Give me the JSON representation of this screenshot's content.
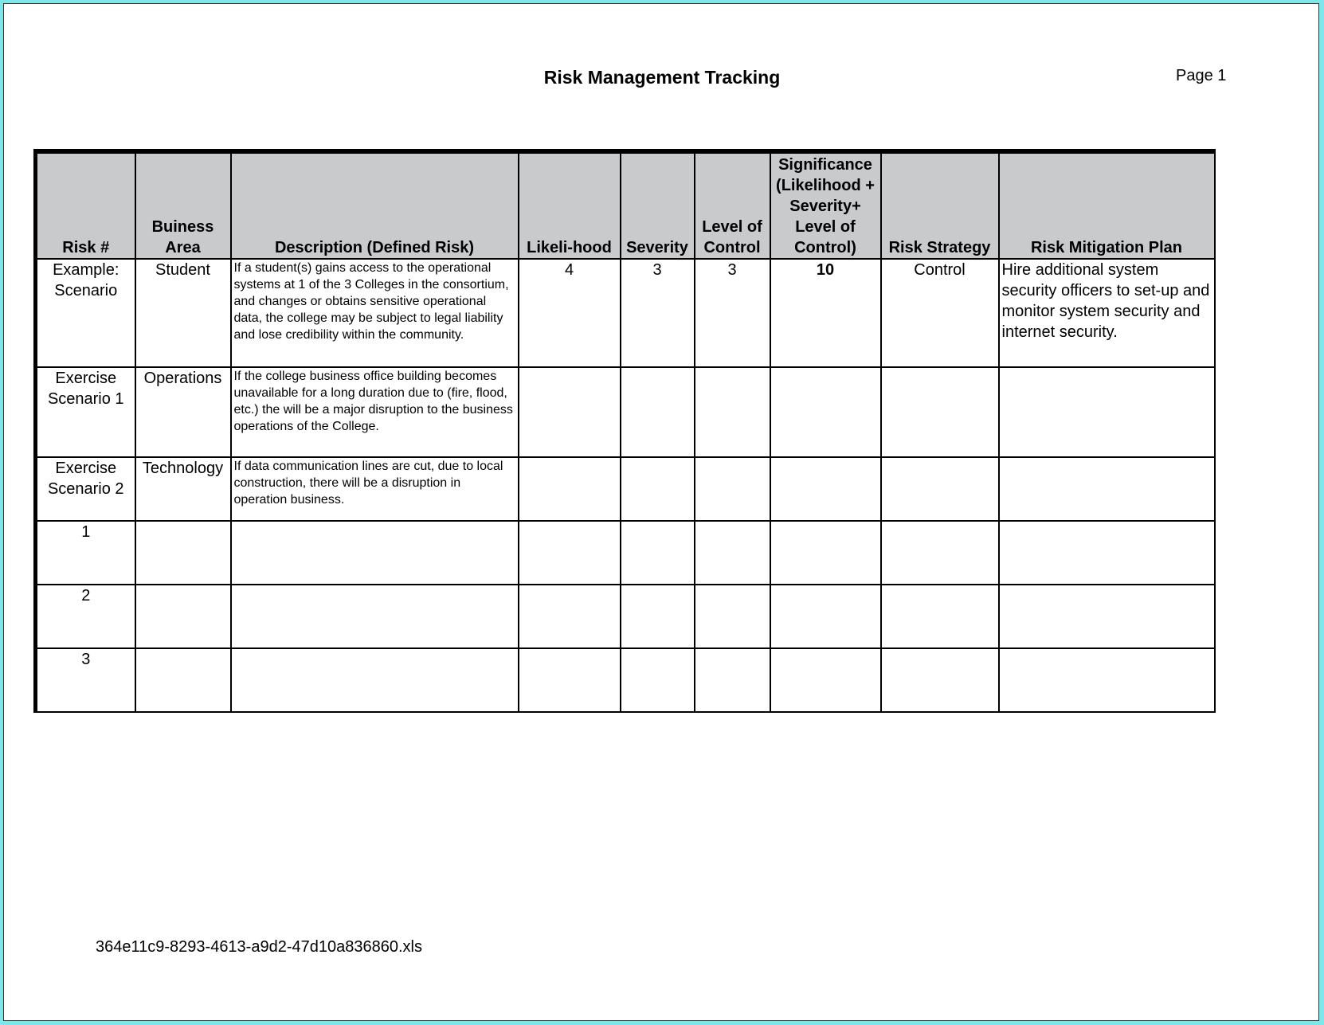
{
  "title": "Risk Management Tracking",
  "page_label": "Page 1",
  "footer": "364e11c9-8293-4613-a9d2-47d10a836860.xls",
  "table": {
    "headers": [
      "Risk #",
      "Buiness Area",
      "Description (Defined Risk)",
      "Likeli-hood",
      "Severity",
      "Level of Control",
      "Significance (Likelihood + Severity+ Level of Control)",
      "Risk Strategy",
      "Risk Mitigation Plan"
    ],
    "rows": [
      [
        "Example: Scenario",
        "Student",
        "If a student(s) gains access to the operational systems at 1 of the 3 Colleges in the consortium, and changes or obtains sensitive operational data, the college may be subject to legal liability and lose credibility within the community.",
        "4",
        "3",
        "3",
        "10",
        "Control",
        "Hire additional system security officers to set-up and monitor system security and internet security."
      ],
      [
        "Exercise Scenario 1",
        "Operations",
        "If the college business office building becomes unavailable for a long duration due to (fire, flood, etc.) the will be a major disruption to the business operations of the College.",
        "",
        "",
        "",
        "",
        "",
        ""
      ],
      [
        "Exercise Scenario 2",
        "Technology",
        "If data communication lines are cut, due to local construction, there will be a disruption in operation business.",
        "",
        "",
        "",
        "",
        "",
        ""
      ],
      [
        "1",
        "",
        "",
        "",
        "",
        "",
        "",
        "",
        ""
      ],
      [
        "2",
        "",
        "",
        "",
        "",
        "",
        "",
        "",
        ""
      ],
      [
        "3",
        "",
        "",
        "",
        "",
        "",
        "",
        "",
        ""
      ]
    ]
  }
}
